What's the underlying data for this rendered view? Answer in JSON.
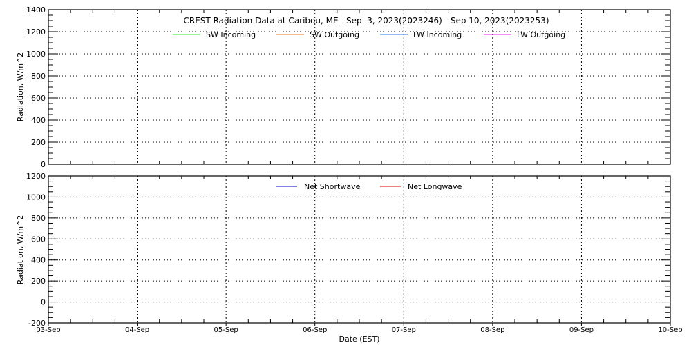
{
  "chart_data": [
    {
      "type": "line",
      "title": "CREST Radiation Data at Caribou, ME   Sep  3, 2023(2023246) - Sep 10, 2023(2023253)",
      "xlabel": "",
      "ylabel": "Radiation, W/m^2",
      "ylim": [
        0,
        1400
      ],
      "yticks": [
        0,
        200,
        400,
        600,
        800,
        1000,
        1200,
        1400
      ],
      "x_categories": [
        "03-Sep",
        "04-Sep",
        "05-Sep",
        "06-Sep",
        "07-Sep",
        "08-Sep",
        "09-Sep",
        "10-Sep"
      ],
      "grid": true,
      "legend_position": "top-center",
      "series": [
        {
          "name": "SW Incoming",
          "color": "#33ee33",
          "values": []
        },
        {
          "name": "SW Outgoing",
          "color": "#ee7722",
          "values": []
        },
        {
          "name": "LW Incoming",
          "color": "#2277ee",
          "values": []
        },
        {
          "name": "LW Outgoing",
          "color": "#ee22ee",
          "values": []
        }
      ]
    },
    {
      "type": "line",
      "xlabel": "Date (EST)",
      "ylabel": "Radiation, W/m^2",
      "ylim": [
        -200,
        1200
      ],
      "yticks": [
        -200,
        0,
        200,
        400,
        600,
        800,
        1000,
        1200
      ],
      "x_categories": [
        "03-Sep",
        "04-Sep",
        "05-Sep",
        "06-Sep",
        "07-Sep",
        "08-Sep",
        "09-Sep",
        "10-Sep"
      ],
      "grid": true,
      "legend_position": "top-center",
      "series": [
        {
          "name": "Net Shortwave",
          "color": "#0000cc",
          "values": []
        },
        {
          "name": "Net Longwave",
          "color": "#dd0000",
          "values": []
        }
      ]
    }
  ]
}
